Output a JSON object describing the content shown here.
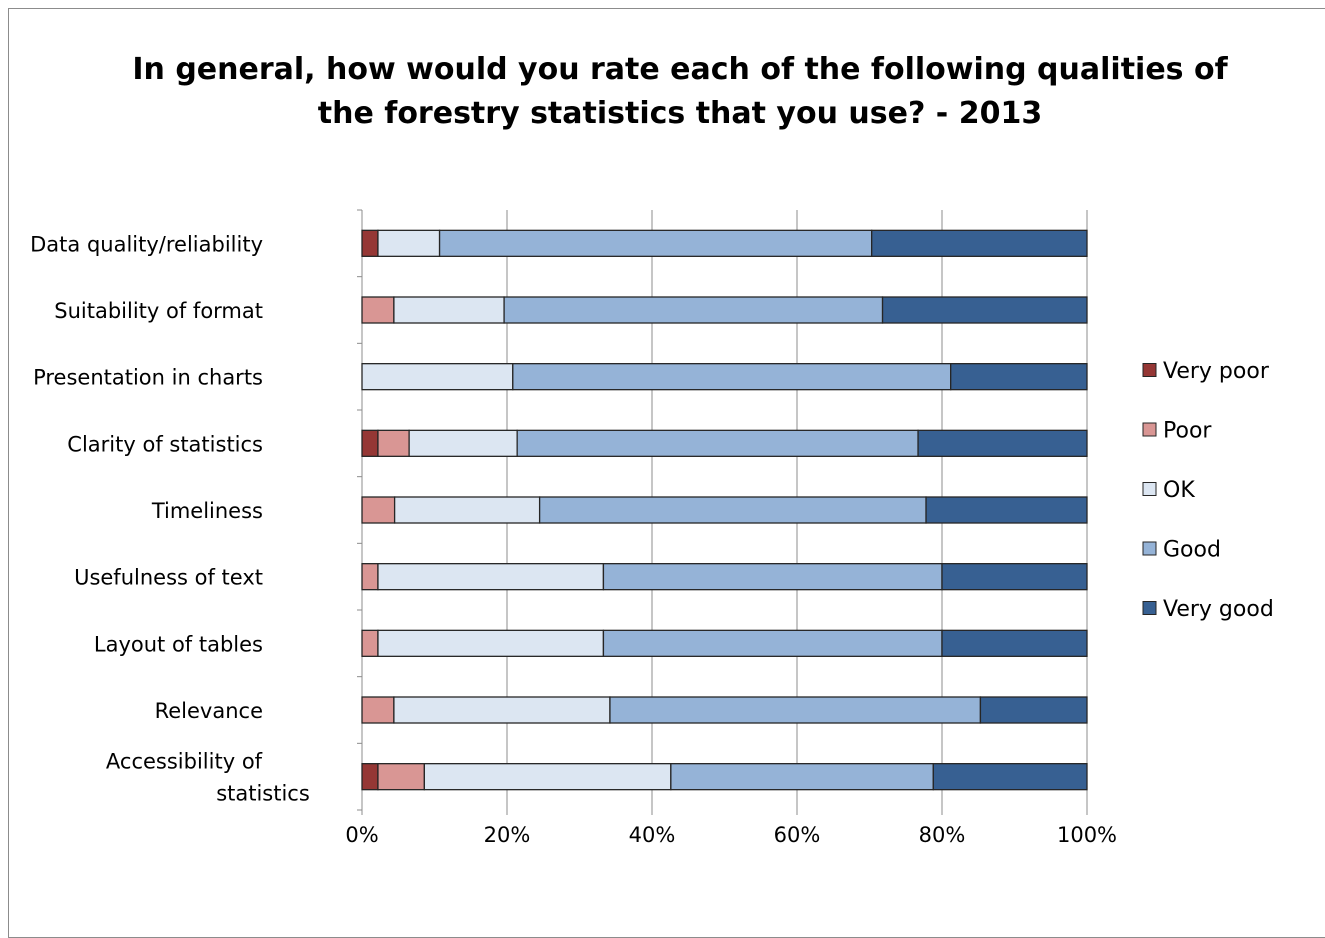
{
  "chart_data": {
    "type": "bar",
    "orientation": "horizontal",
    "stacked": "percent",
    "title": "In general, how would you rate each of the following qualities of\nthe forestry statistics that you use? - 2013",
    "xlabel": "",
    "ylabel": "",
    "xlim": [
      0,
      100
    ],
    "x_ticks": [
      "0%",
      "20%",
      "40%",
      "60%",
      "80%",
      "100%"
    ],
    "grid": "vertical",
    "legend_position": "right",
    "categories": [
      "Data quality/reliability",
      "Suitability of format",
      "Presentation in charts",
      "Clarity of statistics",
      "Timeliness",
      "Usefulness of text",
      "Layout of tables",
      "Relevance",
      "Accessibility of statistics"
    ],
    "category_lines": [
      [
        "Data quality/reliability"
      ],
      [
        "Suitability of format"
      ],
      [
        "Presentation in charts"
      ],
      [
        "Clarity of statistics"
      ],
      [
        "Timeliness"
      ],
      [
        "Usefulness of text"
      ],
      [
        "Layout of tables"
      ],
      [
        "Relevance"
      ],
      [
        "Accessibility of",
        "statistics"
      ]
    ],
    "series": [
      {
        "name": "Very poor",
        "color": "#953735",
        "values": [
          2.2,
          0,
          0,
          2.2,
          0,
          0,
          0,
          0,
          2.2
        ]
      },
      {
        "name": "Poor",
        "color": "#d99694",
        "values": [
          0,
          4.4,
          0,
          4.3,
          4.5,
          2.2,
          2.2,
          4.4,
          6.4
        ]
      },
      {
        "name": "OK",
        "color": "#dce6f2",
        "values": [
          8.5,
          15.2,
          20.8,
          14.9,
          20.0,
          31.1,
          31.1,
          29.8,
          34.0
        ]
      },
      {
        "name": "Good",
        "color": "#95b3d7",
        "values": [
          59.6,
          52.2,
          60.4,
          55.3,
          53.3,
          46.7,
          46.7,
          51.1,
          36.2
        ]
      },
      {
        "name": "Very good",
        "color": "#376092",
        "values": [
          29.7,
          28.2,
          18.8,
          23.3,
          22.2,
          20.0,
          20.0,
          14.7,
          21.2
        ]
      }
    ]
  }
}
